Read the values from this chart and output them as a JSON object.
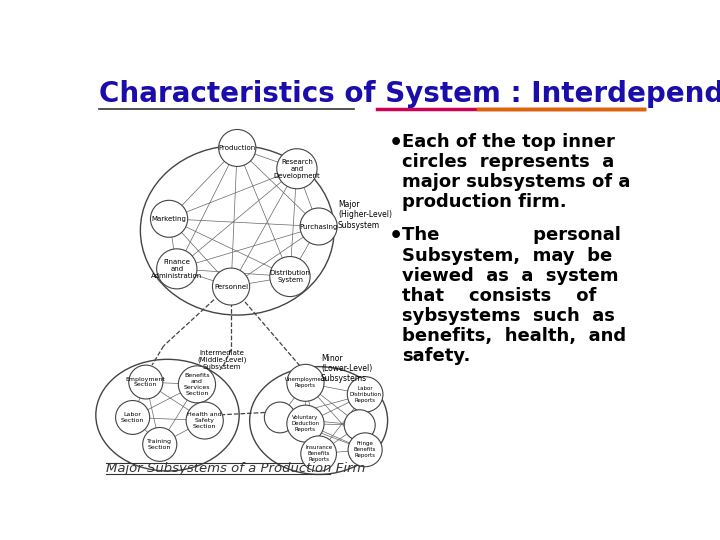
{
  "title": "Characteristics of System : Interdependence",
  "title_color": "#1a0dab",
  "title_fontsize": 20,
  "bg_color": "#ffffff",
  "caption": "Major Subsystems of a Production Firm",
  "separator_color_left": "#222222",
  "separator_color_right": "#cc3300",
  "text_color": "#000000",
  "bullet1_lines": [
    "Each of the top inner",
    "circles  represents  a",
    "major subsystems of a",
    "production firm."
  ],
  "bullet2_lines": [
    "The               personal",
    "Subsystem,  may  be",
    "viewed  as  a  system",
    "that    consists    of",
    "sybsystems  such  as",
    "benefits,  health,  and",
    "safety."
  ]
}
